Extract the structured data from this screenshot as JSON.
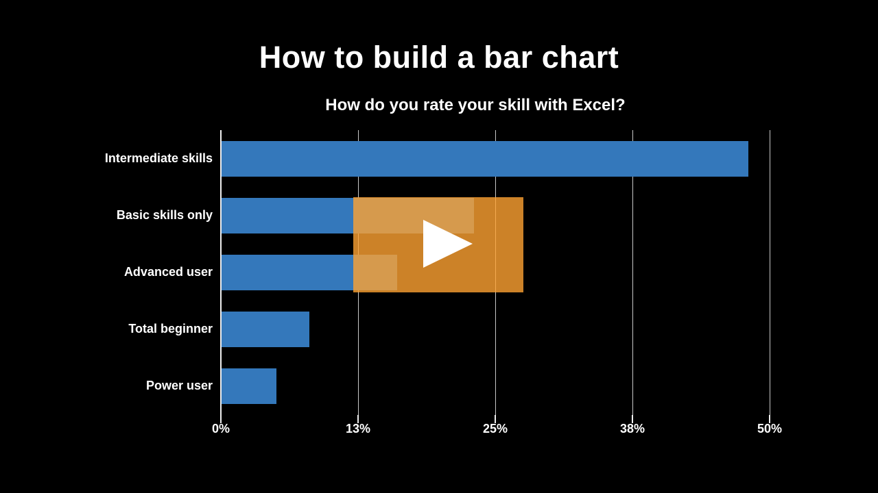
{
  "page_title": "How to build a bar chart",
  "chart_data": {
    "type": "bar",
    "orientation": "horizontal",
    "title": "How do you rate your skill with Excel?",
    "categories": [
      "Intermediate skills",
      "Basic skills only",
      "Advanced user",
      "Total beginner",
      "Power user"
    ],
    "values": [
      48,
      23,
      16,
      8,
      5
    ],
    "unit": "%",
    "xlabel": "",
    "ylabel": "",
    "xlim": [
      0,
      50
    ],
    "x_ticks": [
      {
        "label": "0%",
        "value": 0
      },
      {
        "label": "13%",
        "value": 12.5
      },
      {
        "label": "25%",
        "value": 25
      },
      {
        "label": "38%",
        "value": 37.5
      },
      {
        "label": "50%",
        "value": 50
      }
    ],
    "grid": "vertical-gridlines-on",
    "legend": "none",
    "colors": {
      "bar": "#3478BB",
      "axis": "#F0F0F0",
      "gridline": "#C9C9C9",
      "text": "#FFFFFF",
      "background": "#000000"
    }
  },
  "video_overlay": {
    "label": "play-video",
    "overlay_color": "#FFA332",
    "overlay_opacity": 0.8,
    "icon_color": "#FFFFFF"
  }
}
